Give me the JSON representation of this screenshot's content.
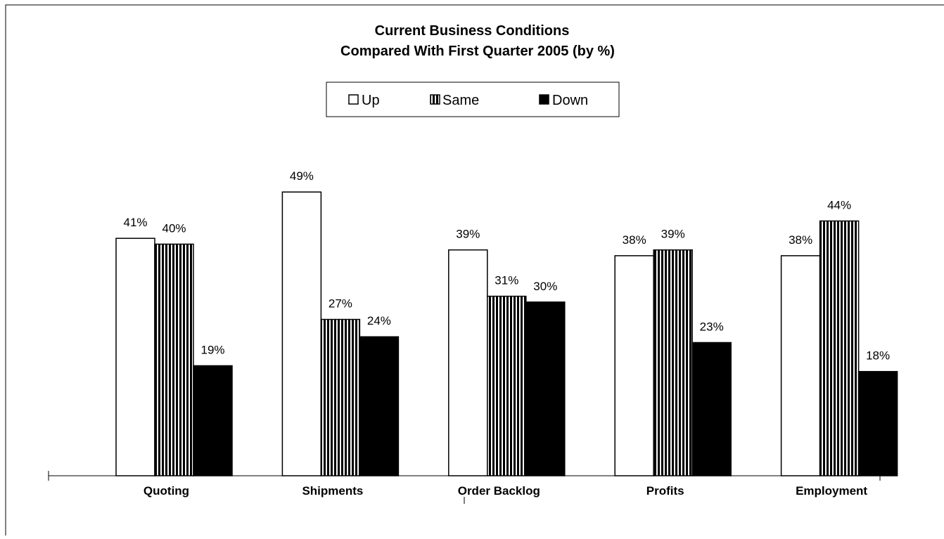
{
  "chart_data": {
    "type": "bar",
    "title": "Current Business Conditions",
    "subtitle": "Compared With First Quarter 2005 (by %)",
    "categories": [
      "Quoting",
      "Shipments",
      "Order Backlog",
      "Profits",
      "Employment"
    ],
    "series": [
      {
        "name": "Up",
        "values": [
          41,
          49,
          39,
          38,
          38
        ],
        "style": "hollow",
        "color": "#ffffff"
      },
      {
        "name": "Same",
        "values": [
          40,
          27,
          31,
          39,
          44
        ],
        "style": "vertical-stripes",
        "color": "#000000"
      },
      {
        "name": "Down",
        "values": [
          19,
          24,
          30,
          23,
          18
        ],
        "style": "solid",
        "color": "#000000"
      }
    ],
    "value_suffix": "%",
    "ylim": [
      0,
      60
    ],
    "grid": false,
    "legend_position": "top-center",
    "data_labels": true
  }
}
